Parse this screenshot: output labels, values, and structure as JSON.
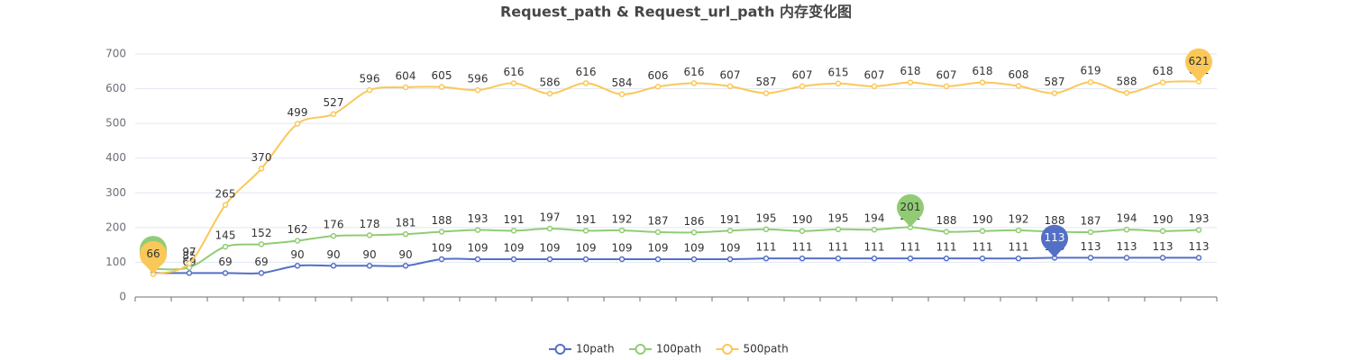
{
  "chart_data": {
    "type": "line",
    "title": "Request_path & Request_url_path 内存变化图",
    "categories": [
      null,
      null,
      null,
      null,
      null,
      null,
      null,
      null,
      null,
      null,
      null,
      null,
      null,
      null,
      null,
      null,
      null,
      null,
      null,
      null,
      null,
      null,
      null,
      null,
      null,
      null,
      null,
      null,
      null,
      null
    ],
    "series": [
      {
        "name": "10path",
        "color": "#5470c6",
        "values": [
          69,
          69,
          69,
          69,
          90,
          90,
          90,
          90,
          109,
          109,
          109,
          109,
          109,
          109,
          109,
          109,
          109,
          111,
          111,
          111,
          111,
          111,
          111,
          111,
          111,
          113,
          113,
          113,
          113,
          113
        ]
      },
      {
        "name": "100path",
        "color": "#91cc75",
        "values": [
          81,
          85,
          145,
          152,
          162,
          176,
          178,
          181,
          188,
          193,
          191,
          197,
          191,
          192,
          187,
          186,
          191,
          195,
          190,
          195,
          194,
          201,
          188,
          190,
          192,
          188,
          187,
          194,
          190,
          193
        ]
      },
      {
        "name": "500path",
        "color": "#fac858",
        "values": [
          66,
          97,
          265,
          370,
          499,
          527,
          596,
          604,
          605,
          596,
          616,
          586,
          616,
          584,
          606,
          616,
          607,
          587,
          607,
          615,
          607,
          618,
          607,
          618,
          608,
          587,
          619,
          588,
          618,
          621
        ]
      }
    ],
    "ylim": [
      0,
      700
    ],
    "yticks": [
      0,
      100,
      200,
      300,
      400,
      500,
      600,
      700
    ],
    "grid": true,
    "smooth": true,
    "mark_points": [
      "max",
      "min"
    ],
    "legend": "bottom"
  }
}
